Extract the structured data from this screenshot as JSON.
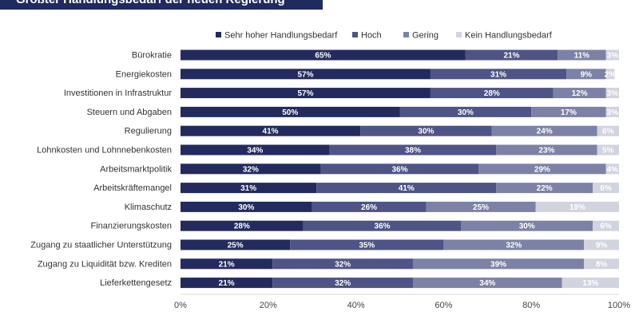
{
  "header": {
    "title": "Größter Handlungsbedarf der neuen Regierung"
  },
  "chart_data": {
    "type": "bar",
    "orientation": "horizontal",
    "stacked": true,
    "title": "Größter Handlungsbedarf der neuen Regierung",
    "categories": [
      "Bürokratie",
      "Energiekosten",
      "Investitionen in Infrastruktur",
      "Steuern und Abgaben",
      "Regulierung",
      "Lohnkosten und Lohnnebenkosten",
      "Arbeitsmarktpolitik",
      "Arbeitskräftemangel",
      "Klimaschutz",
      "Finanzierungskosten",
      "Zugang zu staatlicher Unterstützung",
      "Zugang zu Liquidität bzw. Krediten",
      "Lieferkettengesetz"
    ],
    "series": [
      {
        "name": "Sehr hoher Handlungsbedarf",
        "color": "#232b5e",
        "values": [
          65,
          57,
          57,
          50,
          41,
          34,
          32,
          31,
          30,
          28,
          25,
          21,
          21
        ]
      },
      {
        "name": "Hoch",
        "color": "#4e5485",
        "values": [
          21,
          31,
          28,
          30,
          30,
          38,
          36,
          41,
          26,
          36,
          35,
          32,
          32
        ]
      },
      {
        "name": "Gering",
        "color": "#7c82a5",
        "values": [
          11,
          9,
          12,
          17,
          24,
          23,
          29,
          22,
          25,
          30,
          32,
          39,
          34
        ]
      },
      {
        "name": "Kein Handlungsbedarf",
        "color": "#d1d3de",
        "values": [
          3,
          2,
          3,
          3,
          6,
          5,
          4,
          6,
          19,
          6,
          9,
          8,
          13
        ]
      }
    ],
    "xlim": [
      0,
      100
    ],
    "xticks": [
      "0%",
      "20%",
      "40%",
      "60%",
      "80%",
      "100%"
    ],
    "value_suffix": "%",
    "legend": "top",
    "grid": false
  }
}
